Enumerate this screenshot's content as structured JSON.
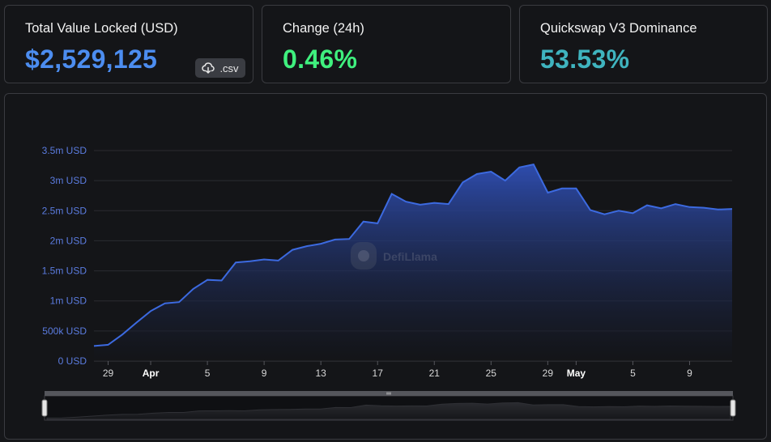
{
  "cards": {
    "tvl": {
      "label": "Total Value Locked (USD)",
      "value": "$2,529,125",
      "color": "#4c8df0",
      "csv_label": ".csv"
    },
    "change": {
      "label": "Change (24h)",
      "value": "0.46%",
      "color": "#3ff07e"
    },
    "dominance": {
      "label": "Quickswap V3 Dominance",
      "value": "53.53%",
      "color": "#3fb4bf"
    }
  },
  "watermark": "DefiLlama",
  "icons": {
    "csv": "cloud-download-icon",
    "watermark": "defillama-llama-icon"
  },
  "colors": {
    "line": "#3c6ae0",
    "fill_top": "#2f4fb5",
    "fill_bottom": "#131418",
    "grid": "#2b2c31"
  },
  "chart_data": {
    "type": "area",
    "title": "",
    "xlabel": "",
    "ylabel": "",
    "ylim": [
      0,
      3500000
    ],
    "yticks": [
      {
        "value": 0,
        "label": "0 USD"
      },
      {
        "value": 500000,
        "label": "500k USD"
      },
      {
        "value": 1000000,
        "label": "1m USD"
      },
      {
        "value": 1500000,
        "label": "1.5m USD"
      },
      {
        "value": 2000000,
        "label": "2m USD"
      },
      {
        "value": 2500000,
        "label": "2.5m USD"
      },
      {
        "value": 3000000,
        "label": "3m USD"
      },
      {
        "value": 3500000,
        "label": "3.5m USD"
      }
    ],
    "xticks": [
      {
        "date": "2023-03-29",
        "label": "29",
        "bold": false
      },
      {
        "date": "2023-04-01",
        "label": "Apr",
        "bold": true
      },
      {
        "date": "2023-04-05",
        "label": "5",
        "bold": false
      },
      {
        "date": "2023-04-09",
        "label": "9",
        "bold": false
      },
      {
        "date": "2023-04-13",
        "label": "13",
        "bold": false
      },
      {
        "date": "2023-04-17",
        "label": "17",
        "bold": false
      },
      {
        "date": "2023-04-21",
        "label": "21",
        "bold": false
      },
      {
        "date": "2023-04-25",
        "label": "25",
        "bold": false
      },
      {
        "date": "2023-04-29",
        "label": "29",
        "bold": false
      },
      {
        "date": "2023-05-01",
        "label": "May",
        "bold": true
      },
      {
        "date": "2023-05-05",
        "label": "5",
        "bold": false
      },
      {
        "date": "2023-05-09",
        "label": "9",
        "bold": false
      }
    ],
    "grid": true,
    "legend": "none",
    "series": [
      {
        "x": [
          "2023-03-28",
          "2023-03-29",
          "2023-03-30",
          "2023-03-31",
          "2023-04-01",
          "2023-04-02",
          "2023-04-03",
          "2023-04-04",
          "2023-04-05",
          "2023-04-06",
          "2023-04-07",
          "2023-04-08",
          "2023-04-09",
          "2023-04-10",
          "2023-04-11",
          "2023-04-12",
          "2023-04-13",
          "2023-04-14",
          "2023-04-15",
          "2023-04-16",
          "2023-04-17",
          "2023-04-18",
          "2023-04-19",
          "2023-04-20",
          "2023-04-21",
          "2023-04-22",
          "2023-04-23",
          "2023-04-24",
          "2023-04-25",
          "2023-04-26",
          "2023-04-27",
          "2023-04-28",
          "2023-04-29",
          "2023-04-30",
          "2023-05-01",
          "2023-05-02",
          "2023-05-03",
          "2023-05-04",
          "2023-05-05",
          "2023-05-06",
          "2023-05-07",
          "2023-05-08",
          "2023-05-09",
          "2023-05-10",
          "2023-05-11",
          "2023-05-12"
        ],
        "values": [
          250000,
          270000,
          440000,
          640000,
          830000,
          960000,
          980000,
          1200000,
          1350000,
          1340000,
          1640000,
          1660000,
          1690000,
          1670000,
          1850000,
          1910000,
          1950000,
          2020000,
          2030000,
          2320000,
          2290000,
          2780000,
          2650000,
          2600000,
          2630000,
          2610000,
          2970000,
          3110000,
          3150000,
          3000000,
          3220000,
          3270000,
          2800000,
          2870000,
          2870000,
          2510000,
          2440000,
          2500000,
          2460000,
          2590000,
          2540000,
          2610000,
          2560000,
          2550000,
          2520000,
          2529125
        ]
      }
    ]
  }
}
